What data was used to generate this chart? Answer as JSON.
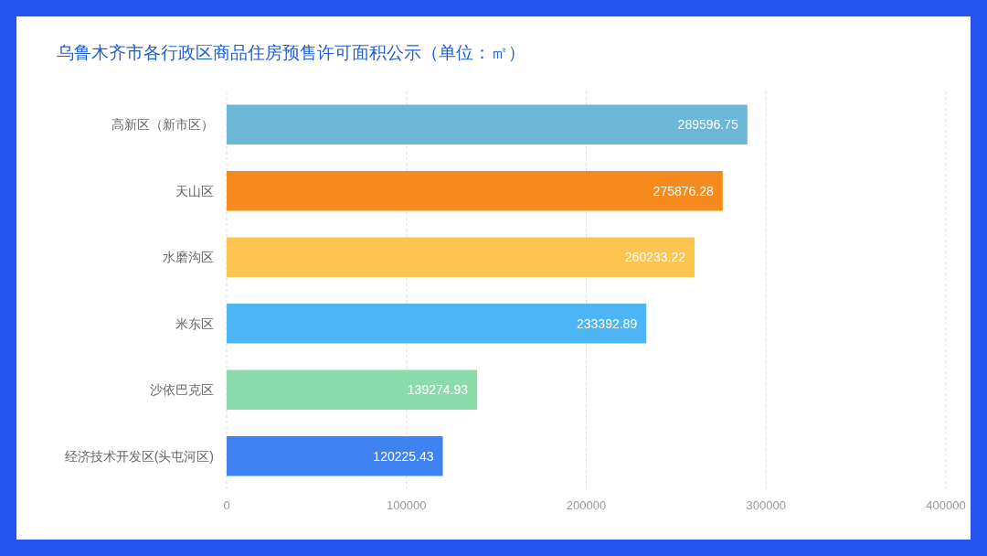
{
  "chart_data": {
    "type": "bar",
    "orientation": "horizontal",
    "title": "乌鲁木齐市各行政区商品住房预售许可面积公示（单位：㎡）",
    "categories": [
      "高新区（新市区）",
      "天山区",
      "水磨沟区",
      "米东区",
      "沙依巴克区",
      "经济技术开发区(头屯河区)"
    ],
    "values": [
      289596.75,
      275876.28,
      260233.22,
      233392.89,
      139274.93,
      120225.43
    ],
    "colors": [
      "#6cb6d6",
      "#f78a1d",
      "#fdc44f",
      "#4db5f5",
      "#8cdcab",
      "#3f83f3"
    ],
    "xlim": [
      0,
      400000
    ],
    "xticks": [
      0,
      100000,
      200000,
      300000,
      400000
    ],
    "grid": "x",
    "data_labels": true
  }
}
